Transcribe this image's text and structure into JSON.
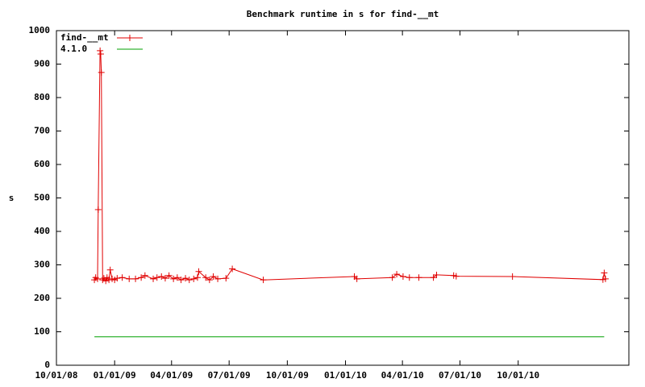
{
  "chart_data": {
    "type": "line",
    "title": "Benchmark runtime in s for find-__mt",
    "ylabel": "s",
    "ylim": [
      0,
      1000
    ],
    "yticks": [
      0,
      100,
      200,
      300,
      400,
      500,
      600,
      700,
      800,
      900,
      1000
    ],
    "xlim": [
      "2008-10-01",
      "2011-03-25"
    ],
    "xticks": [
      {
        "value": "2008-10-01",
        "label": "10/01/08"
      },
      {
        "value": "2009-01-01",
        "label": "01/01/09"
      },
      {
        "value": "2009-04-01",
        "label": "04/01/09"
      },
      {
        "value": "2009-07-01",
        "label": "07/01/09"
      },
      {
        "value": "2009-10-01",
        "label": "10/01/09"
      },
      {
        "value": "2010-01-01",
        "label": "01/01/10"
      },
      {
        "value": "2010-04-01",
        "label": "04/01/10"
      },
      {
        "value": "2010-07-01",
        "label": "07/01/10"
      },
      {
        "value": "2010-10-01",
        "label": "10/01/10"
      }
    ],
    "legend": "top-left",
    "series": [
      {
        "name": "find-__mt",
        "color": "#e00000",
        "markers": true,
        "x": [
          "2008-11-30",
          "2008-12-02",
          "2008-12-05",
          "2008-12-06",
          "2008-12-09",
          "2008-12-10",
          "2008-12-11",
          "2008-12-13",
          "2008-12-15",
          "2008-12-18",
          "2008-12-20",
          "2008-12-23",
          "2008-12-25",
          "2008-12-28",
          "2009-01-01",
          "2009-01-05",
          "2009-01-13",
          "2009-01-24",
          "2009-02-03",
          "2009-02-12",
          "2009-02-18",
          "2009-03-03",
          "2009-03-09",
          "2009-03-16",
          "2009-03-22",
          "2009-03-28",
          "2009-04-04",
          "2009-04-10",
          "2009-04-16",
          "2009-04-23",
          "2009-04-29",
          "2009-05-06",
          "2009-05-12",
          "2009-05-14",
          "2009-05-25",
          "2009-05-31",
          "2009-06-06",
          "2009-06-13",
          "2009-06-26",
          "2009-07-06",
          "2009-08-24",
          "2010-01-15",
          "2010-01-19",
          "2010-03-16",
          "2010-03-23",
          "2010-04-02",
          "2010-04-12",
          "2010-04-27",
          "2010-05-20",
          "2010-05-25",
          "2010-06-21",
          "2010-06-25",
          "2010-09-22",
          "2011-02-12",
          "2011-02-14",
          "2011-02-16"
        ],
        "values": [
          255,
          262,
          258,
          465,
          940,
          930,
          875,
          255,
          260,
          252,
          262,
          255,
          285,
          258,
          255,
          260,
          262,
          258,
          258,
          262,
          268,
          258,
          262,
          265,
          260,
          268,
          258,
          262,
          255,
          260,
          255,
          258,
          262,
          280,
          262,
          255,
          265,
          258,
          260,
          288,
          255,
          265,
          258,
          262,
          272,
          265,
          262,
          262,
          262,
          270,
          268,
          266,
          265,
          256,
          276,
          258
        ]
      },
      {
        "name": "4.1.0",
        "color": "#00a000",
        "markers": false,
        "x": [
          "2008-11-30",
          "2011-02-14"
        ],
        "values": [
          85,
          85
        ]
      }
    ]
  }
}
